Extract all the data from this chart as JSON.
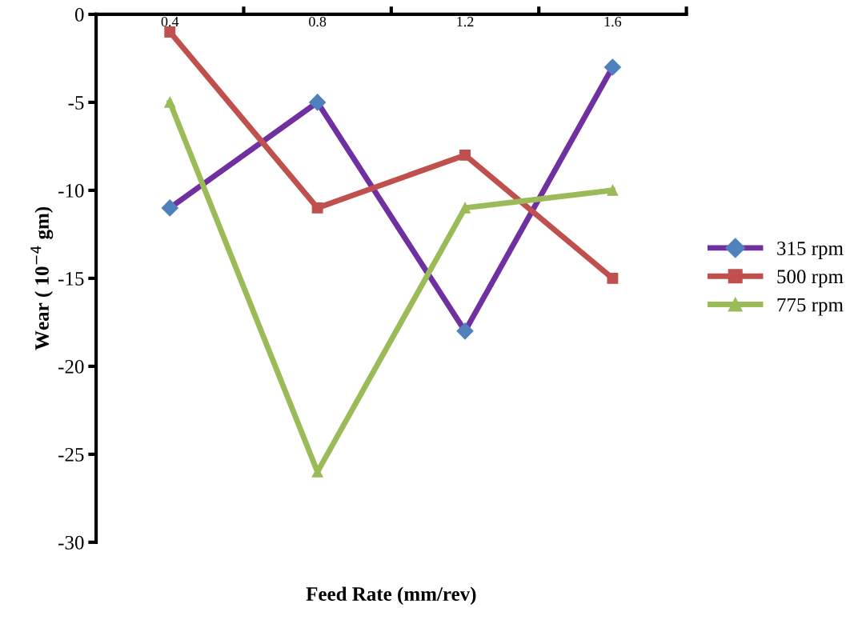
{
  "chart_data": {
    "type": "line",
    "xlabel": "Feed Rate (mm/rev)",
    "ylabel": "Wear ( 10$^{−4}$ gm)",
    "categories": [
      "0.4",
      "0.8",
      "1.2",
      "1.6"
    ],
    "series": [
      {
        "name": "315 rpm",
        "color": "#7030a0",
        "colors": [
          "#4f81bd",
          "#4f81bd",
          "#4f81bd",
          "#4f81bd"
        ],
        "marker": "diamond",
        "values": [
          -11,
          -5,
          -18,
          -3
        ]
      },
      {
        "name": "500 rpm",
        "color": "#c0504d",
        "marker": "square",
        "values": [
          -1,
          -11,
          -8,
          -15
        ]
      },
      {
        "name": "775 rpm",
        "color": "#9bbb59",
        "marker": "triangle",
        "values": [
          -5,
          -26,
          -11,
          -10
        ]
      }
    ],
    "ylim": [
      -30,
      0
    ],
    "yticks": [
      -30,
      -25,
      -20,
      -15,
      -10,
      -5,
      0
    ],
    "grid": false,
    "legend": "right"
  }
}
